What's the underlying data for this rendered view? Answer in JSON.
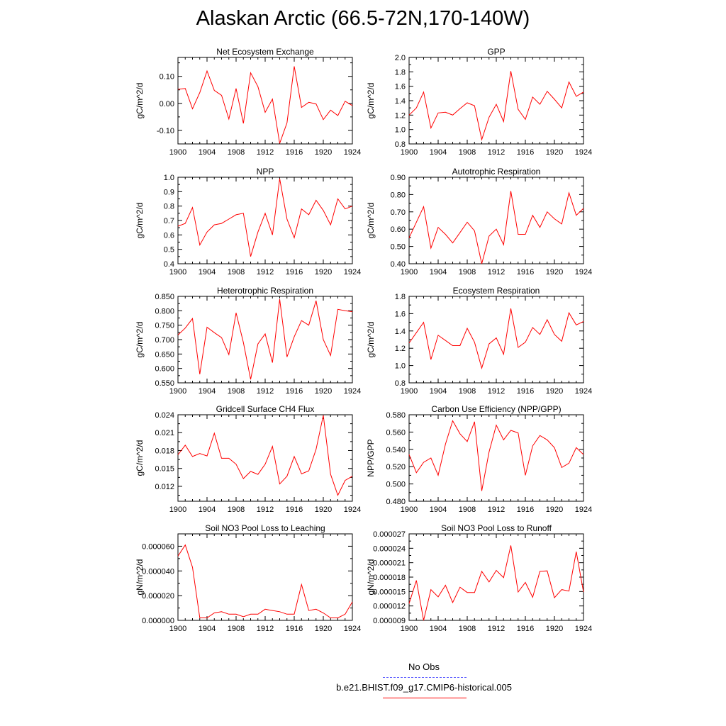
{
  "title": "Alaskan Arctic (66.5-72N,170-140W)",
  "legend": {
    "obs_label": "No Obs",
    "obs_color": "#5555ff",
    "model_label": "b.e21.BHIST.f09_g17.CMIP6-historical.005",
    "model_color": "#ff0000"
  },
  "chart_data": [
    {
      "type": "line",
      "title": "Net Ecosystem Exchange",
      "ylabel": "gC/m^2/d",
      "xlim": [
        1900,
        1924
      ],
      "ylim": [
        -0.15,
        0.17
      ],
      "xticks": [
        1900,
        1904,
        1908,
        1912,
        1916,
        1920,
        1924
      ],
      "yticks": [
        -0.1,
        0.0,
        0.1
      ],
      "ytick_labels": [
        "-0.10",
        "0.00",
        "0.10"
      ],
      "x": [
        1900,
        1901,
        1902,
        1903,
        1904,
        1905,
        1906,
        1907,
        1908,
        1909,
        1910,
        1911,
        1912,
        1913,
        1914,
        1915,
        1916,
        1917,
        1918,
        1919,
        1920,
        1921,
        1922,
        1923,
        1924
      ],
      "series": [
        {
          "values": [
            0.052,
            0.055,
            -0.02,
            0.04,
            0.12,
            0.048,
            0.03,
            -0.058,
            0.055,
            -0.074,
            0.113,
            0.062,
            -0.033,
            0.016,
            -0.148,
            -0.072,
            0.137,
            -0.015,
            0.004,
            -0.002,
            -0.06,
            -0.025,
            -0.045,
            0.008,
            -0.008
          ],
          "color": "#ff0000"
        }
      ]
    },
    {
      "type": "line",
      "title": "GPP",
      "ylabel": "gC/m^2/d",
      "xlim": [
        1900,
        1924
      ],
      "ylim": [
        0.8,
        2.0
      ],
      "xticks": [
        1900,
        1904,
        1908,
        1912,
        1916,
        1920,
        1924
      ],
      "yticks": [
        0.8,
        1.0,
        1.2,
        1.4,
        1.6,
        1.8,
        2.0
      ],
      "ytick_labels": [
        "0.8",
        "1.0",
        "1.2",
        "1.4",
        "1.6",
        "1.8",
        "2.0"
      ],
      "x": [
        1900,
        1901,
        1902,
        1903,
        1904,
        1905,
        1906,
        1907,
        1908,
        1909,
        1910,
        1911,
        1912,
        1913,
        1914,
        1915,
        1916,
        1917,
        1918,
        1919,
        1920,
        1921,
        1922,
        1923,
        1924
      ],
      "series": [
        {
          "values": [
            1.2,
            1.3,
            1.52,
            1.02,
            1.23,
            1.24,
            1.2,
            1.29,
            1.37,
            1.33,
            0.86,
            1.17,
            1.35,
            1.11,
            1.81,
            1.28,
            1.14,
            1.45,
            1.35,
            1.53,
            1.42,
            1.3,
            1.66,
            1.46,
            1.52
          ],
          "color": "#ff0000"
        }
      ]
    },
    {
      "type": "line",
      "title": "NPP",
      "ylabel": "gC/m^2/d",
      "xlim": [
        1900,
        1924
      ],
      "ylim": [
        0.4,
        1.0
      ],
      "xticks": [
        1900,
        1904,
        1908,
        1912,
        1916,
        1920,
        1924
      ],
      "yticks": [
        0.4,
        0.5,
        0.6,
        0.7,
        0.8,
        0.9,
        1.0
      ],
      "ytick_labels": [
        "0.4",
        "0.5",
        "0.6",
        "0.7",
        "0.8",
        "0.9",
        "1.0"
      ],
      "x": [
        1900,
        1901,
        1902,
        1903,
        1904,
        1905,
        1906,
        1907,
        1908,
        1909,
        1910,
        1911,
        1912,
        1913,
        1914,
        1915,
        1916,
        1917,
        1918,
        1919,
        1920,
        1921,
        1922,
        1923,
        1924
      ],
      "series": [
        {
          "values": [
            0.66,
            0.68,
            0.79,
            0.53,
            0.62,
            0.67,
            0.68,
            0.71,
            0.74,
            0.75,
            0.45,
            0.62,
            0.75,
            0.6,
            0.99,
            0.71,
            0.58,
            0.78,
            0.74,
            0.84,
            0.77,
            0.67,
            0.85,
            0.78,
            0.8
          ],
          "color": "#ff0000"
        }
      ]
    },
    {
      "type": "line",
      "title": "Autotrophic Respiration",
      "ylabel": "gC/m^2/d",
      "xlim": [
        1900,
        1924
      ],
      "ylim": [
        0.4,
        0.9
      ],
      "xticks": [
        1900,
        1904,
        1908,
        1912,
        1916,
        1920,
        1924
      ],
      "yticks": [
        0.4,
        0.5,
        0.6,
        0.7,
        0.8,
        0.9
      ],
      "ytick_labels": [
        "0.40",
        "0.50",
        "0.60",
        "0.70",
        "0.80",
        "0.90"
      ],
      "x": [
        1900,
        1901,
        1902,
        1903,
        1904,
        1905,
        1906,
        1907,
        1908,
        1909,
        1910,
        1911,
        1912,
        1913,
        1914,
        1915,
        1916,
        1917,
        1918,
        1919,
        1920,
        1921,
        1922,
        1923,
        1924
      ],
      "series": [
        {
          "values": [
            0.55,
            0.64,
            0.73,
            0.49,
            0.61,
            0.57,
            0.52,
            0.58,
            0.64,
            0.59,
            0.4,
            0.56,
            0.6,
            0.51,
            0.82,
            0.57,
            0.57,
            0.68,
            0.61,
            0.7,
            0.66,
            0.63,
            0.81,
            0.68,
            0.72
          ],
          "color": "#ff0000"
        }
      ]
    },
    {
      "type": "line",
      "title": "Heterotrophic Respiration",
      "ylabel": "gC/m^2/d",
      "xlim": [
        1900,
        1924
      ],
      "ylim": [
        0.55,
        0.85
      ],
      "xticks": [
        1900,
        1904,
        1908,
        1912,
        1916,
        1920,
        1924
      ],
      "yticks": [
        0.55,
        0.6,
        0.65,
        0.7,
        0.75,
        0.8,
        0.85
      ],
      "ytick_labels": [
        "0.550",
        "0.600",
        "0.650",
        "0.700",
        "0.750",
        "0.800",
        "0.850"
      ],
      "x": [
        1900,
        1901,
        1902,
        1903,
        1904,
        1905,
        1906,
        1907,
        1908,
        1909,
        1910,
        1911,
        1912,
        1913,
        1914,
        1915,
        1916,
        1917,
        1918,
        1919,
        1920,
        1921,
        1922,
        1923,
        1924
      ],
      "series": [
        {
          "values": [
            0.716,
            0.74,
            0.773,
            0.58,
            0.743,
            0.724,
            0.707,
            0.648,
            0.793,
            0.69,
            0.562,
            0.685,
            0.72,
            0.62,
            0.84,
            0.64,
            0.71,
            0.766,
            0.75,
            0.835,
            0.7,
            0.645,
            0.805,
            0.8,
            0.797
          ],
          "color": "#ff0000"
        }
      ]
    },
    {
      "type": "line",
      "title": "Ecosystem Respiration",
      "ylabel": "gC/m^2/d",
      "xlim": [
        1900,
        1924
      ],
      "ylim": [
        0.8,
        1.8
      ],
      "xticks": [
        1900,
        1904,
        1908,
        1912,
        1916,
        1920,
        1924
      ],
      "yticks": [
        0.8,
        1.0,
        1.2,
        1.4,
        1.6,
        1.8
      ],
      "ytick_labels": [
        "0.8",
        "1.0",
        "1.2",
        "1.4",
        "1.6",
        "1.8"
      ],
      "x": [
        1900,
        1901,
        1902,
        1903,
        1904,
        1905,
        1906,
        1907,
        1908,
        1909,
        1910,
        1911,
        1912,
        1913,
        1914,
        1915,
        1916,
        1917,
        1918,
        1919,
        1920,
        1921,
        1922,
        1923,
        1924
      ],
      "series": [
        {
          "values": [
            1.26,
            1.38,
            1.5,
            1.07,
            1.35,
            1.29,
            1.23,
            1.23,
            1.43,
            1.27,
            0.97,
            1.25,
            1.32,
            1.13,
            1.66,
            1.21,
            1.27,
            1.44,
            1.36,
            1.53,
            1.36,
            1.28,
            1.61,
            1.47,
            1.51
          ],
          "color": "#ff0000"
        }
      ]
    },
    {
      "type": "line",
      "title": "Gridcell Surface CH4 Flux",
      "ylabel": "gC/m^2/d",
      "xlim": [
        1900,
        1924
      ],
      "ylim": [
        0.0095,
        0.024
      ],
      "xticks": [
        1900,
        1904,
        1908,
        1912,
        1916,
        1920,
        1924
      ],
      "yticks": [
        0.012,
        0.015,
        0.018,
        0.021,
        0.024
      ],
      "ytick_labels": [
        "0.012",
        "0.015",
        "0.018",
        "0.021",
        "0.024"
      ],
      "x": [
        1900,
        1901,
        1902,
        1903,
        1904,
        1905,
        1906,
        1907,
        1908,
        1909,
        1910,
        1911,
        1912,
        1913,
        1914,
        1915,
        1916,
        1917,
        1918,
        1919,
        1920,
        1921,
        1922,
        1923,
        1924
      ],
      "series": [
        {
          "values": [
            0.0173,
            0.0189,
            0.017,
            0.0175,
            0.0171,
            0.0209,
            0.0167,
            0.0167,
            0.0157,
            0.0133,
            0.0145,
            0.014,
            0.0157,
            0.0187,
            0.0124,
            0.0137,
            0.017,
            0.0141,
            0.0146,
            0.0182,
            0.0239,
            0.014,
            0.0105,
            0.013,
            0.0137
          ],
          "color": "#ff0000"
        }
      ]
    },
    {
      "type": "line",
      "title": "Carbon Use Efficiency (NPP/GPP)",
      "ylabel": "NPP/GPP",
      "xlim": [
        1900,
        1924
      ],
      "ylim": [
        0.48,
        0.58
      ],
      "xticks": [
        1900,
        1904,
        1908,
        1912,
        1916,
        1920,
        1924
      ],
      "yticks": [
        0.48,
        0.5,
        0.52,
        0.54,
        0.56,
        0.58
      ],
      "ytick_labels": [
        "0.480",
        "0.500",
        "0.520",
        "0.540",
        "0.560",
        "0.580"
      ],
      "x": [
        1900,
        1901,
        1902,
        1903,
        1904,
        1905,
        1906,
        1907,
        1908,
        1909,
        1910,
        1911,
        1912,
        1913,
        1914,
        1915,
        1916,
        1917,
        1918,
        1919,
        1920,
        1921,
        1922,
        1923,
        1924
      ],
      "series": [
        {
          "values": [
            0.534,
            0.513,
            0.525,
            0.53,
            0.51,
            0.546,
            0.573,
            0.558,
            0.549,
            0.572,
            0.492,
            0.537,
            0.568,
            0.551,
            0.562,
            0.559,
            0.51,
            0.544,
            0.556,
            0.551,
            0.542,
            0.519,
            0.524,
            0.542,
            0.534
          ],
          "color": "#ff0000"
        }
      ]
    },
    {
      "type": "line",
      "title": "Soil NO3 Pool Loss to Leaching",
      "ylabel": "gN/m^2/d",
      "xlim": [
        1900,
        1924
      ],
      "ylim": [
        0.0,
        7e-05
      ],
      "xticks": [
        1900,
        1904,
        1908,
        1912,
        1916,
        1920,
        1924
      ],
      "yticks": [
        0.0,
        2e-05,
        4e-05,
        6e-05
      ],
      "ytick_labels": [
        "0.000000",
        "0.000020",
        "0.000040",
        "0.000060"
      ],
      "x": [
        1900,
        1901,
        1902,
        1903,
        1904,
        1905,
        1906,
        1907,
        1908,
        1909,
        1910,
        1911,
        1912,
        1913,
        1914,
        1915,
        1916,
        1917,
        1918,
        1919,
        1920,
        1921,
        1922,
        1923,
        1924
      ],
      "series": [
        {
          "values": [
            5.2e-05,
            6.1e-05,
            4.3e-05,
            2e-06,
            2e-06,
            6e-06,
            7e-06,
            5e-06,
            5e-06,
            3e-06,
            5e-06,
            5e-06,
            9e-06,
            8e-06,
            7e-06,
            5e-06,
            5e-06,
            2.9e-05,
            8e-06,
            9e-06,
            6e-06,
            2e-06,
            2e-06,
            5e-06,
            1.5e-05
          ],
          "color": "#ff0000"
        }
      ]
    },
    {
      "type": "line",
      "title": "Soil NO3 Pool Loss to Runoff",
      "ylabel": "gN/m^2/d",
      "xlim": [
        1900,
        1924
      ],
      "ylim": [
        9e-06,
        2.7e-05
      ],
      "xticks": [
        1900,
        1904,
        1908,
        1912,
        1916,
        1920,
        1924
      ],
      "yticks": [
        9e-06,
        1.2e-05,
        1.5e-05,
        1.8e-05,
        2.1e-05,
        2.4e-05,
        2.7e-05
      ],
      "ytick_labels": [
        "0.000009",
        "0.000012",
        "0.000015",
        "0.000018",
        "0.000021",
        "0.000024",
        "0.000027"
      ],
      "x": [
        1900,
        1901,
        1902,
        1903,
        1904,
        1905,
        1906,
        1907,
        1908,
        1909,
        1910,
        1911,
        1912,
        1913,
        1914,
        1915,
        1916,
        1917,
        1918,
        1919,
        1920,
        1921,
        1922,
        1923,
        1924
      ],
      "series": [
        {
          "values": [
            1.25e-05,
            1.73e-05,
            9e-06,
            1.54e-05,
            1.39e-05,
            1.63e-05,
            1.27e-05,
            1.59e-05,
            1.48e-05,
            1.48e-05,
            1.92e-05,
            1.7e-05,
            1.94e-05,
            1.79e-05,
            2.46e-05,
            1.49e-05,
            1.69e-05,
            1.38e-05,
            1.92e-05,
            1.93e-05,
            1.37e-05,
            1.54e-05,
            1.51e-05,
            2.33e-05,
            1.49e-05
          ],
          "color": "#ff0000"
        }
      ]
    }
  ]
}
